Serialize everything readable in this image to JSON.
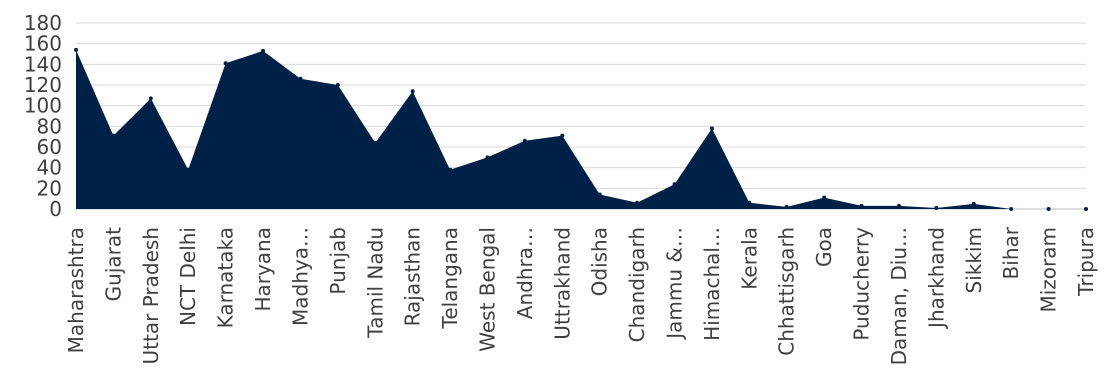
{
  "chart_data": {
    "type": "area",
    "categories": [
      "Maharashtra",
      "Gujarat",
      "Uttar Pradesh",
      "NCT Delhi",
      "Karnataka",
      "Haryana",
      "Madhya…",
      "Punjab",
      "Tamil Nadu",
      "Rajasthan",
      "Telangana",
      "West Bengal",
      "Andhra…",
      "Uttrakhand",
      "Odisha",
      "Chandigarh",
      "Jammu &…",
      "Himachal…",
      "Kerala",
      "Chhattisgarh",
      "Goa",
      "Puducherry",
      "Daman, Diu…",
      "Jharkhand",
      "Sikkim",
      "Bihar",
      "Mizoram",
      "Tripura"
    ],
    "values": [
      154,
      71,
      107,
      38,
      141,
      153,
      126,
      120,
      64,
      114,
      38,
      50,
      66,
      71,
      14,
      6,
      24,
      78,
      6,
      2,
      11,
      3,
      3,
      1,
      5,
      0,
      0,
      0
    ],
    "ylim": [
      0,
      180
    ],
    "yticks": [
      "0",
      "20",
      "40",
      "60",
      "80",
      "100",
      "120",
      "140",
      "160",
      "180"
    ],
    "title": "",
    "xlabel": "",
    "ylabel": "",
    "grid": true,
    "fill_color": "#002147"
  }
}
